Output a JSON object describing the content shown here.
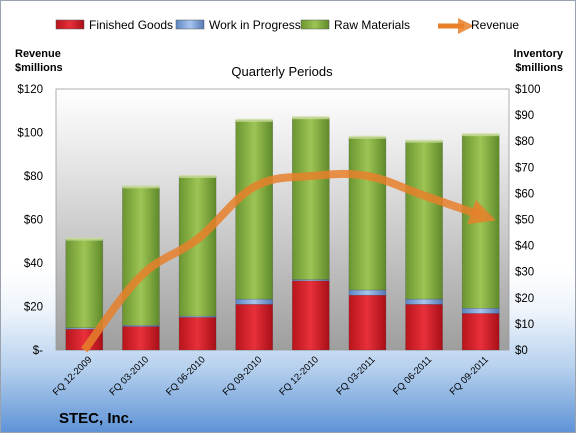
{
  "chart_data": {
    "type": "bar",
    "stacked": true,
    "title": "Quarterly Periods",
    "footer": "STEC, Inc.",
    "y_left_label": [
      "Revenue",
      "$millions"
    ],
    "y_right_label": [
      "Inventory",
      "$millions"
    ],
    "y_left_ticks": [
      "$-",
      "$20",
      "$40",
      "$60",
      "$80",
      "$100",
      "$120"
    ],
    "y_right_ticks": [
      "$0",
      "$10",
      "$20",
      "$30",
      "$40",
      "$50",
      "$60",
      "$70",
      "$80",
      "$90",
      "$100"
    ],
    "y_left_range": [
      0,
      120
    ],
    "y_right_range": [
      0,
      100
    ],
    "categories": [
      "FQ 12-2009",
      "FQ 03-2010",
      "FQ 06-2010",
      "FQ 09-2010",
      "FQ 12-2010",
      "FQ 03-2011",
      "FQ 06-2011",
      "FQ 09-2011"
    ],
    "series": [
      {
        "name": "Finished Goods",
        "axis": "right",
        "color": "#e0202a",
        "values": [
          8,
          9,
          12.5,
          17.5,
          26.5,
          21,
          17.5,
          14
        ]
      },
      {
        "name": "Work in Progress",
        "axis": "right",
        "color": "#7ea6dc",
        "values": [
          0.5,
          0.5,
          0.5,
          2,
          0.5,
          2,
          2,
          2
        ]
      },
      {
        "name": "Raw Materials",
        "axis": "right",
        "color": "#86b144",
        "values": [
          34,
          53,
          53.5,
          68.5,
          62,
          58.5,
          60.5,
          66.5
        ]
      },
      {
        "name": "Revenue",
        "axis": "left",
        "type": "line",
        "color": "#e8802a",
        "values": [
          0,
          34,
          51,
          75,
          80,
          80,
          71,
          62
        ]
      }
    ],
    "legend_position": "top",
    "grid": false
  }
}
